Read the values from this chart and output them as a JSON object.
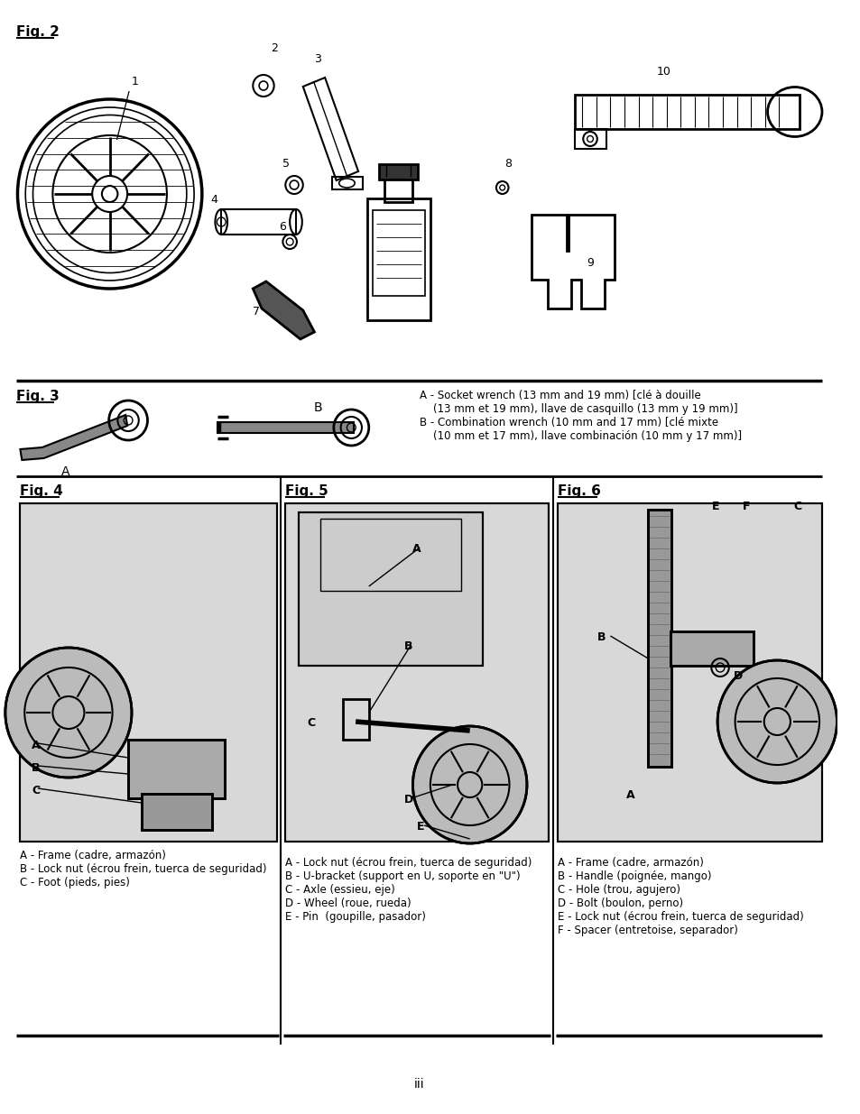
{
  "page_background": "#ffffff",
  "page_width": 9.54,
  "page_height": 12.35,
  "fig2_title": "Fig. 2",
  "fig3_title": "Fig. 3",
  "fig4_title": "Fig. 4",
  "fig5_title": "Fig. 5",
  "fig6_title": "Fig. 6",
  "page_number": "iii",
  "fig3_text_A": "A - Socket wrench (13 mm and 19 mm) [clé à douille\n    (13 mm et 19 mm), llave de casquillo (13 mm y 19 mm)]",
  "fig3_text_B": "B - Combination wrench (10 mm and 17 mm) [clé mixte\n    (10 mm et 17 mm), llave combinación (10 mm y 17 mm)]",
  "fig4_text": "A - Frame (cadre, armazón)\nB - Lock nut (écrou frein, tuerca de seguridad)\nC - Foot (pieds, pies)",
  "fig5_text": "A - Lock nut (écrou frein, tuerca de seguridad)\nB - U-bracket (support en U, soporte en \"U\")\nC - Axle (essieu, eje)\nD - Wheel (roue, rueda)\nE - Pin  (goupille, pasador)",
  "fig6_text": "A - Frame (cadre, armazón)\nB - Handle (poignée, mango)\nC - Hole (trou, agujero)\nD - Bolt (boulon, perno)\nE - Lock nut (écrou frein, tuerca de seguridad)\nF - Spacer (entretoise, separador)"
}
